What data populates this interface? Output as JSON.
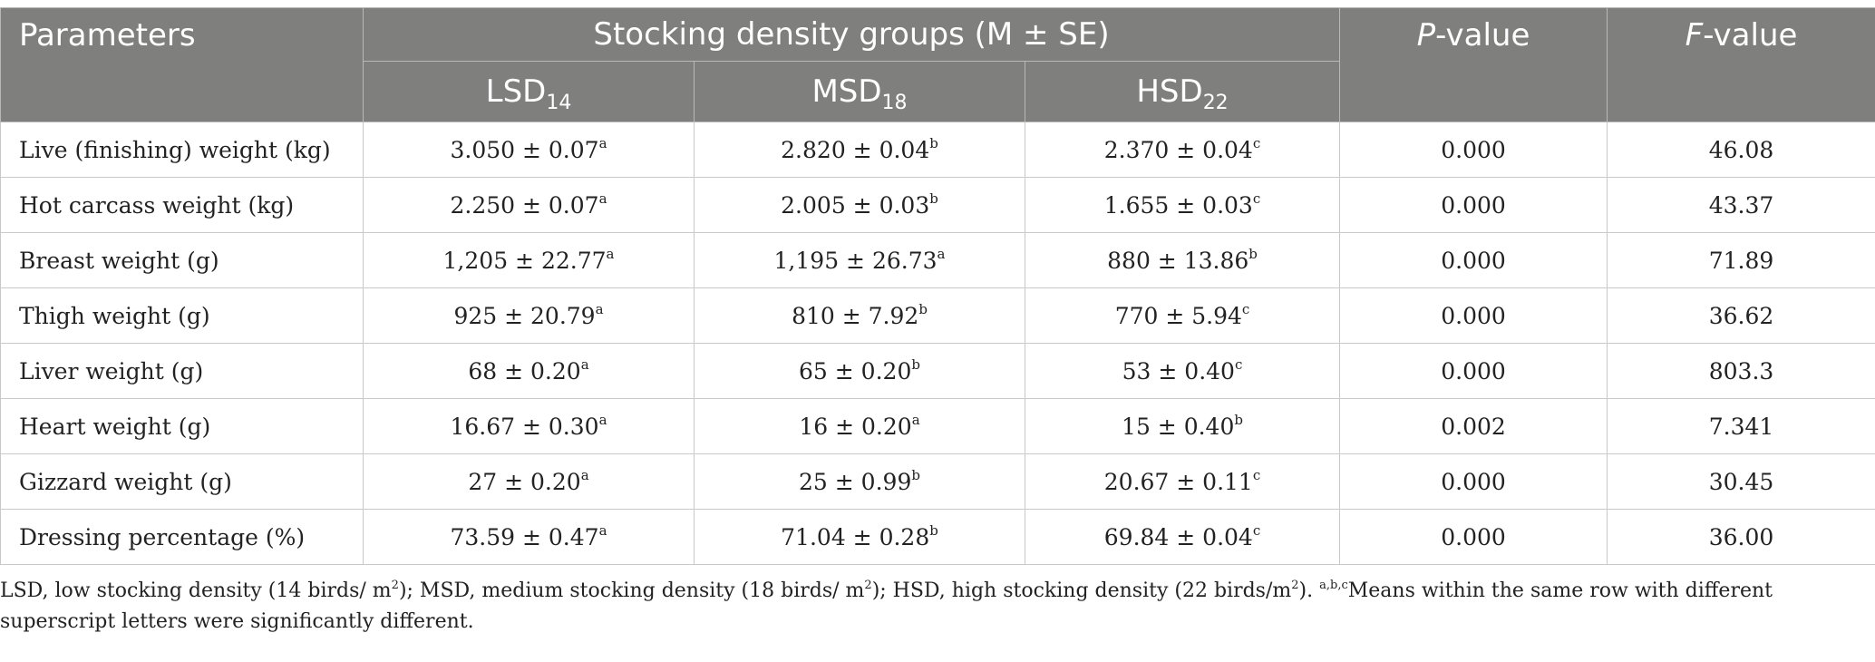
{
  "header": {
    "parameters": "Parameters",
    "group_title": "Stocking density groups (M ± SE)",
    "p_prefix": "P",
    "p_suffix": "-value",
    "f_prefix": "F",
    "f_suffix": "-value",
    "groups": [
      {
        "base": "LSD",
        "sub": "14"
      },
      {
        "base": "MSD",
        "sub": "18"
      },
      {
        "base": "HSD",
        "sub": "22"
      }
    ]
  },
  "rows": [
    {
      "label": "Live (finishing) weight (kg)",
      "lsd": "3.050 ± 0.07",
      "lsd_sup": "a",
      "msd": "2.820 ± 0.04",
      "msd_sup": "b",
      "hsd": "2.370 ± 0.04",
      "hsd_sup": "c",
      "p": "0.000",
      "f": "46.08"
    },
    {
      "label": "Hot carcass weight (kg)",
      "lsd": "2.250 ± 0.07",
      "lsd_sup": "a",
      "msd": "2.005 ± 0.03",
      "msd_sup": "b",
      "hsd": "1.655 ± 0.03",
      "hsd_sup": "c",
      "p": "0.000",
      "f": "43.37"
    },
    {
      "label": "Breast weight (g)",
      "lsd": "1,205 ± 22.77",
      "lsd_sup": "a",
      "msd": "1,195 ± 26.73",
      "msd_sup": "a",
      "hsd": "880 ± 13.86",
      "hsd_sup": "b",
      "p": "0.000",
      "f": "71.89"
    },
    {
      "label": "Thigh weight (g)",
      "lsd": "925 ± 20.79",
      "lsd_sup": "a",
      "msd": "810 ± 7.92",
      "msd_sup": "b",
      "hsd": "770 ± 5.94",
      "hsd_sup": "c",
      "p": "0.000",
      "f": "36.62"
    },
    {
      "label": "Liver weight (g)",
      "lsd": "68 ± 0.20",
      "lsd_sup": "a",
      "msd": "65 ± 0.20",
      "msd_sup": "b",
      "hsd": "53 ± 0.40",
      "hsd_sup": "c",
      "p": "0.000",
      "f": "803.3"
    },
    {
      "label": "Heart weight (g)",
      "lsd": "16.67 ± 0.30",
      "lsd_sup": "a",
      "msd": "16 ± 0.20",
      "msd_sup": "a",
      "hsd": "15 ± 0.40",
      "hsd_sup": "b",
      "p": "0.002",
      "f": "7.341"
    },
    {
      "label": "Gizzard weight (g)",
      "lsd": "27 ± 0.20",
      "lsd_sup": "a",
      "msd": "25 ± 0.99",
      "msd_sup": "b",
      "hsd": "20.67 ± 0.11",
      "hsd_sup": "c",
      "p": "0.000",
      "f": "30.45"
    },
    {
      "label": "Dressing percentage (%)",
      "lsd": "73.59 ± 0.47",
      "lsd_sup": "a",
      "msd": "71.04 ± 0.28",
      "msd_sup": "b",
      "hsd": "69.84 ± 0.04",
      "hsd_sup": "c",
      "p": "0.000",
      "f": "36.00"
    }
  ],
  "footnote": {
    "part1": "LSD, low stocking density (14 birds/ m",
    "sq1": "2",
    "part2": "); MSD, medium stocking density (18 birds/ m",
    "sq2": "2",
    "part3": "); HSD, high stocking density (22 birds/m",
    "sq3": "2",
    "part4": "). ",
    "letters": "a,b,c",
    "part5": "Means within the same row with different superscript letters were significantly different."
  },
  "colors": {
    "header_bg": "#7f807e",
    "header_text": "#ffffff"
  }
}
